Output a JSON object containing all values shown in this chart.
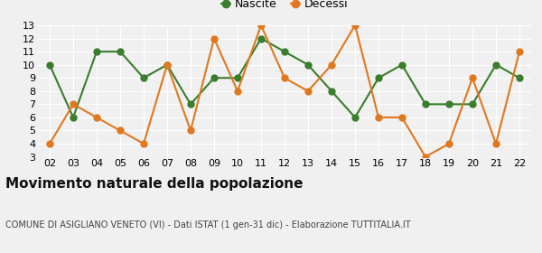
{
  "years": [
    "02",
    "03",
    "04",
    "05",
    "06",
    "07",
    "08",
    "09",
    "10",
    "11",
    "12",
    "13",
    "14",
    "15",
    "16",
    "17",
    "18",
    "19",
    "20",
    "21",
    "22"
  ],
  "nascite": [
    10,
    6,
    11,
    11,
    9,
    10,
    7,
    9,
    9,
    12,
    11,
    10,
    8,
    6,
    9,
    10,
    7,
    7,
    7,
    10,
    9
  ],
  "decessi": [
    4,
    7,
    6,
    5,
    4,
    10,
    5,
    12,
    8,
    13,
    9,
    8,
    10,
    13,
    6,
    6,
    3,
    4,
    9,
    4,
    11
  ],
  "nascite_color": "#3a7d2c",
  "decessi_color": "#e07820",
  "title": "Movimento naturale della popolazione",
  "subtitle": "COMUNE DI ASIGLIANO VENETO (VI) - Dati ISTAT (1 gen-31 dic) - Elaborazione TUTTITALIA.IT",
  "legend_nascite": "Nascite",
  "legend_decessi": "Decessi",
  "ylim": [
    3,
    13
  ],
  "yticks": [
    3,
    4,
    5,
    6,
    7,
    8,
    9,
    10,
    11,
    12,
    13
  ],
  "bg_color": "#f0f0f0",
  "grid_color": "#ffffff",
  "marker_size": 5,
  "linewidth": 1.5,
  "tick_fontsize": 8,
  "title_fontsize": 11,
  "subtitle_fontsize": 7,
  "legend_fontsize": 9
}
